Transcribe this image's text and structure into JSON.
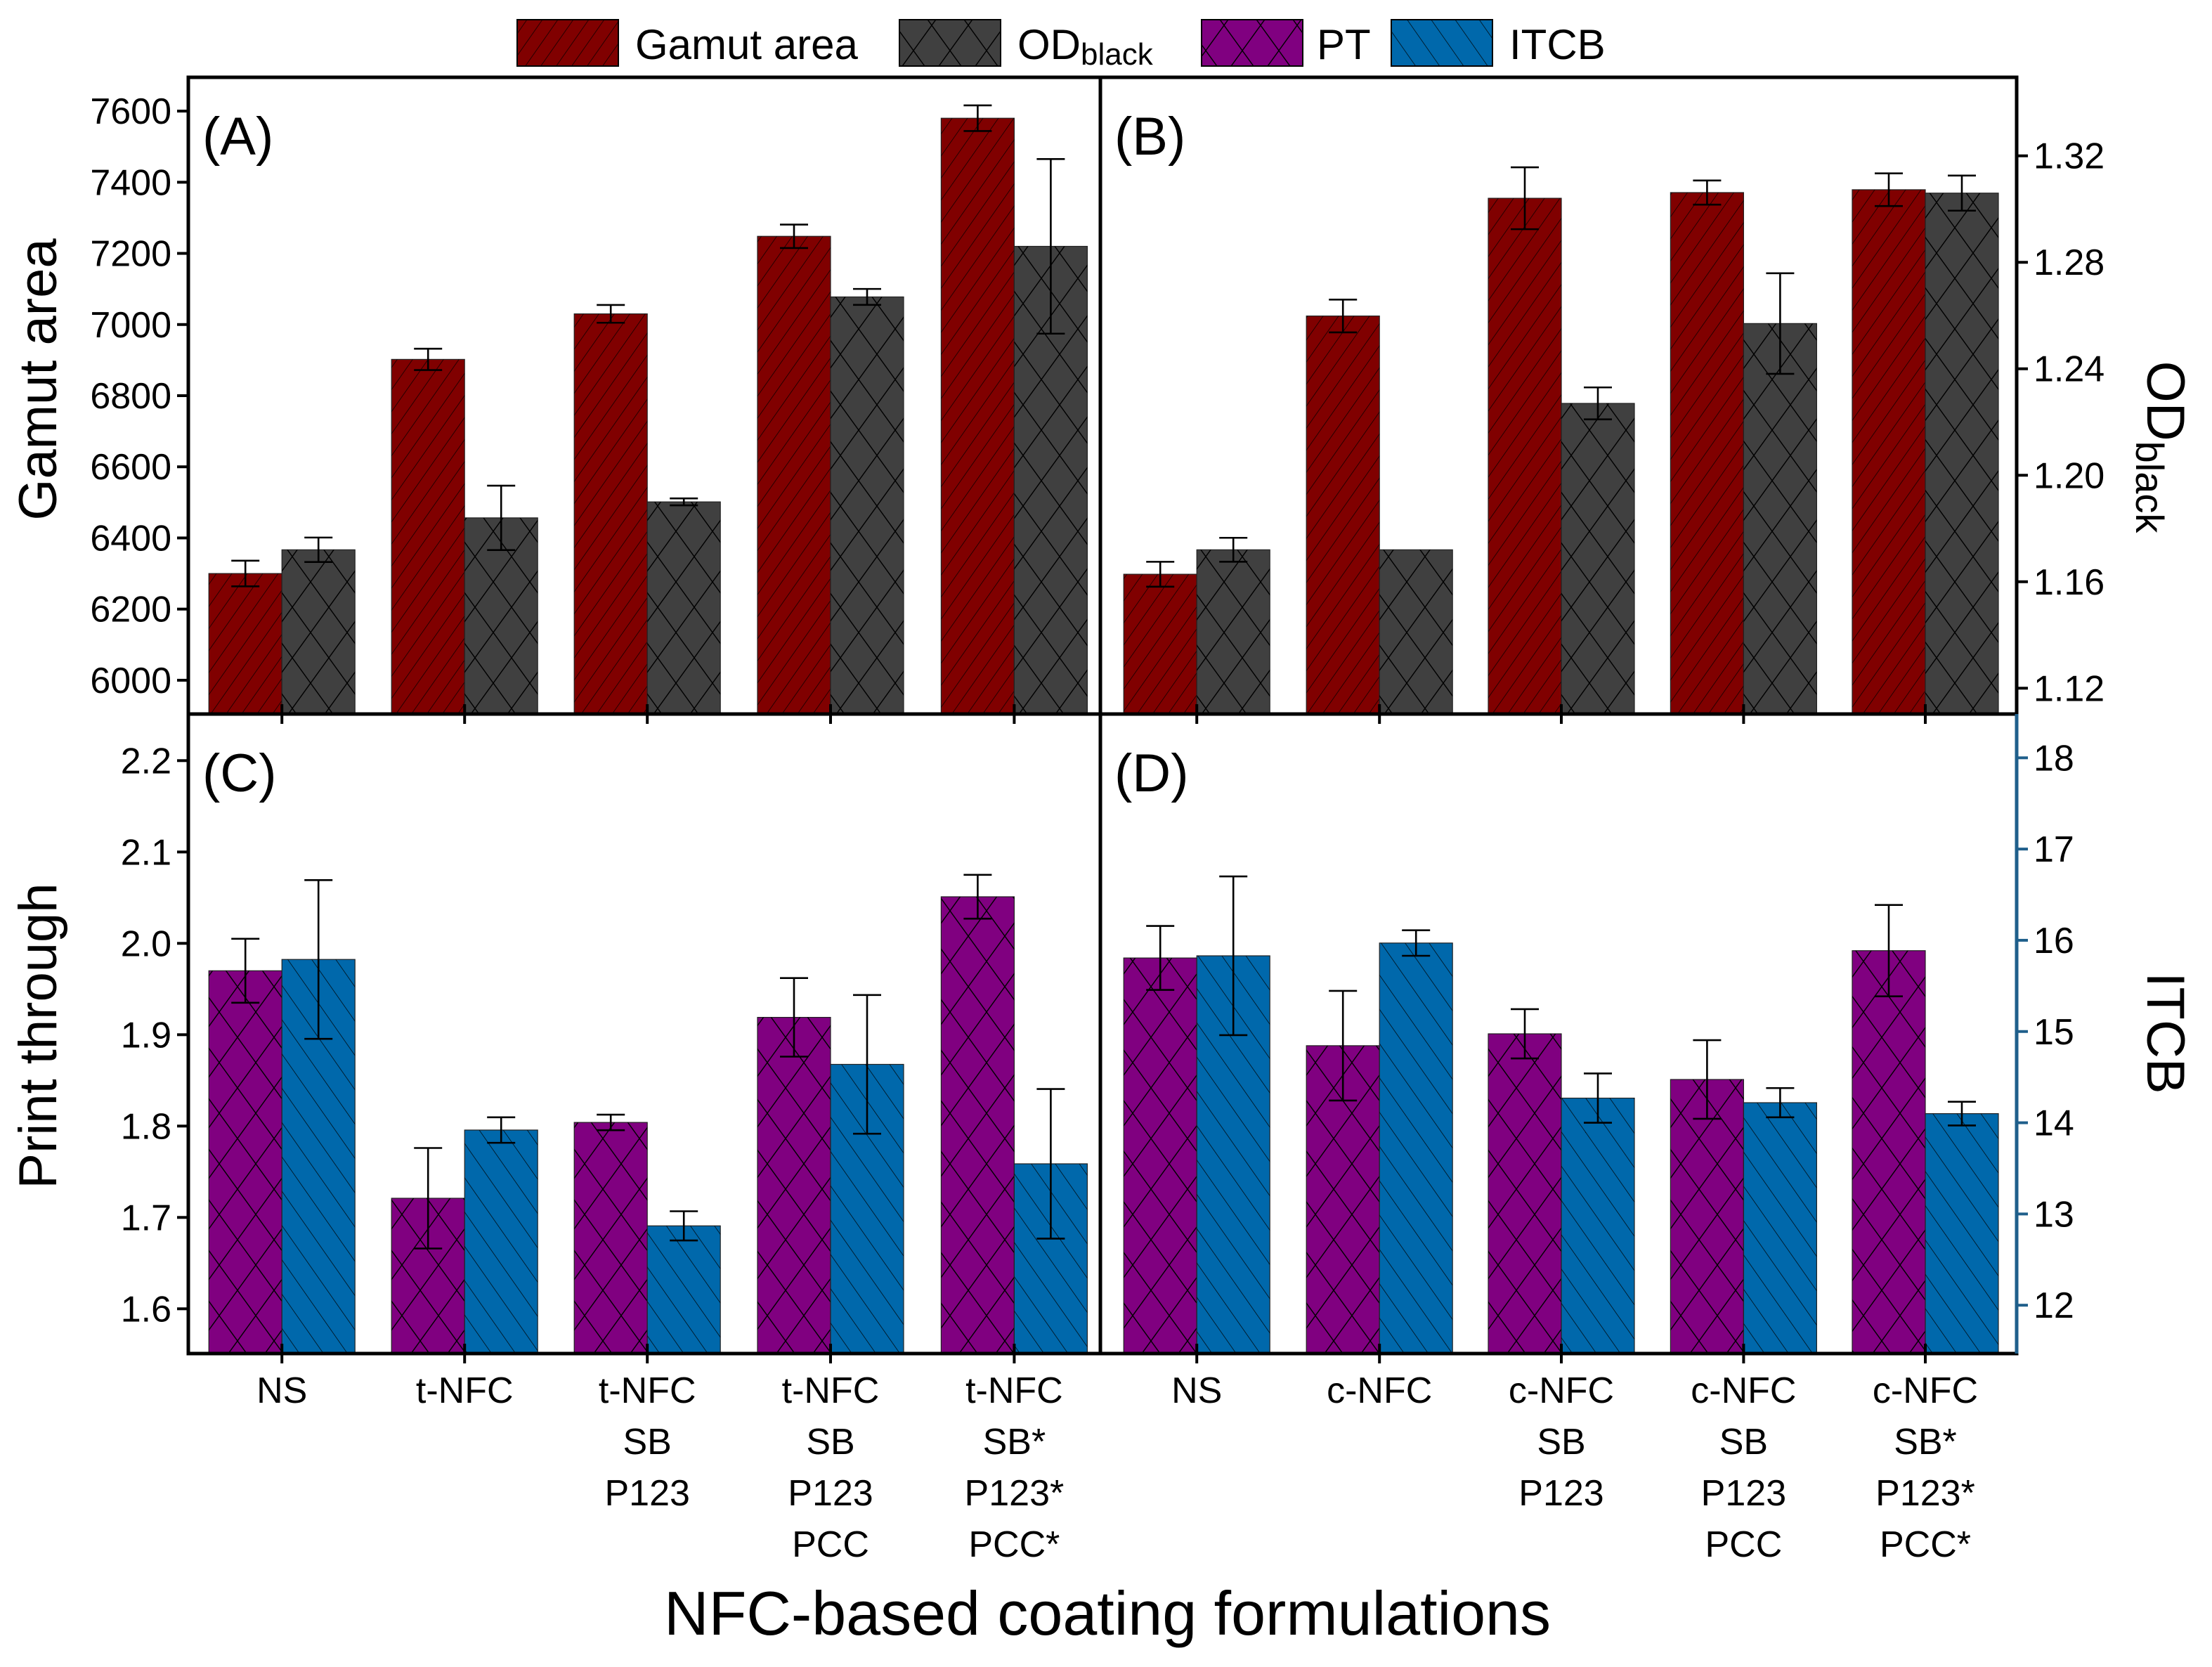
{
  "legend": [
    {
      "name": "Gamut area",
      "color": "#800000",
      "pattern": "hatch-forward"
    },
    {
      "name": "OD",
      "sub": "black",
      "color": "#404040",
      "pattern": "crosshatch"
    },
    {
      "name": "PT",
      "color": "#800080",
      "pattern": "crosshatch"
    },
    {
      "name": "ITCB",
      "color": "#0068ab",
      "pattern": "hatch-backward"
    }
  ],
  "xlabel": "NFC-based coating formulations",
  "axes": {
    "gamut": {
      "label": "Gamut area",
      "ylim": [
        5905,
        7695
      ],
      "ticks": [
        6000,
        6200,
        6400,
        6600,
        6800,
        7000,
        7200,
        7400,
        7600
      ],
      "decimals": 0
    },
    "od": {
      "label": "OD",
      "label_sub": "black",
      "ylim": [
        1.1103,
        1.3495
      ],
      "ticks": [
        1.12,
        1.16,
        1.2,
        1.24,
        1.28,
        1.32
      ],
      "decimals": 2
    },
    "pt": {
      "label": "Print through",
      "ylim": [
        1.551,
        2.251
      ],
      "ticks": [
        1.6,
        1.7,
        1.8,
        1.9,
        2.0,
        2.1,
        2.2
      ],
      "decimals": 1
    },
    "itcb": {
      "label": "ITCB",
      "ylim": [
        11.47,
        18.48
      ],
      "ticks": [
        12,
        13,
        14,
        15,
        16,
        17,
        18
      ],
      "decimals": 0,
      "color": "#1f5f8b"
    }
  },
  "chart_data": [
    {
      "panel": "(A)",
      "type": "bar",
      "grid": false,
      "series": [
        {
          "name": "Gamut area",
          "axis": "gamut",
          "values": [
            6300,
            6902,
            7030,
            7248,
            7580
          ],
          "errors": [
            36,
            30,
            25,
            33,
            36
          ]
        },
        {
          "name": "ODblack",
          "axis": "od",
          "values": [
            1.172,
            1.184,
            1.19,
            1.267,
            1.286
          ],
          "errors": [
            0.0046,
            0.0121,
            0.0013,
            0.003,
            0.0328
          ]
        }
      ]
    },
    {
      "panel": "(B)",
      "type": "bar",
      "grid": false,
      "series": [
        {
          "name": "Gamut area",
          "axis": "gamut",
          "values": [
            6298,
            7024,
            7355,
            7371,
            7379
          ],
          "errors": [
            35,
            46,
            87,
            34,
            46
          ]
        },
        {
          "name": "ODblack",
          "axis": "od",
          "values": [
            1.172,
            1.172,
            1.227,
            1.257,
            1.306
          ],
          "errors": [
            0.0045,
            0,
            0.006,
            0.0189,
            0.0066
          ]
        }
      ]
    },
    {
      "panel": "(C)",
      "type": "bar",
      "grid": false,
      "categories": [
        [
          "NS"
        ],
        [
          "t-NFC"
        ],
        [
          "t-NFC",
          "SB",
          "P123"
        ],
        [
          "t-NFC",
          "SB",
          "P123",
          "PCC"
        ],
        [
          "t-NFC",
          "SB*",
          "P123*",
          "PCC*"
        ]
      ],
      "series": [
        {
          "name": "PT",
          "axis": "pt",
          "values": [
            1.97,
            1.721,
            1.804,
            1.919,
            2.051
          ],
          "errors": [
            0.035,
            0.055,
            0.0085,
            0.043,
            0.024
          ]
        },
        {
          "name": "ITCB",
          "axis": "itcb",
          "values": [
            15.79,
            13.92,
            12.87,
            14.64,
            13.55
          ],
          "errors": [
            0.87,
            0.14,
            0.16,
            0.76,
            0.82
          ]
        }
      ]
    },
    {
      "panel": "(D)",
      "type": "bar",
      "grid": false,
      "categories": [
        [
          "NS"
        ],
        [
          "c-NFC"
        ],
        [
          "c-NFC",
          "SB",
          "P123"
        ],
        [
          "c-NFC",
          "SB",
          "P123",
          "PCC"
        ],
        [
          "c-NFC",
          "SB*",
          "P123*",
          "PCC*"
        ]
      ],
      "series": [
        {
          "name": "PT",
          "axis": "pt",
          "values": [
            1.984,
            1.888,
            1.901,
            1.851,
            1.992
          ],
          "errors": [
            0.035,
            0.06,
            0.027,
            0.043,
            0.05
          ]
        },
        {
          "name": "ITCB",
          "axis": "itcb",
          "values": [
            15.83,
            15.97,
            14.27,
            14.22,
            14.1
          ],
          "errors": [
            0.87,
            0.14,
            0.27,
            0.16,
            0.13
          ]
        }
      ]
    }
  ]
}
